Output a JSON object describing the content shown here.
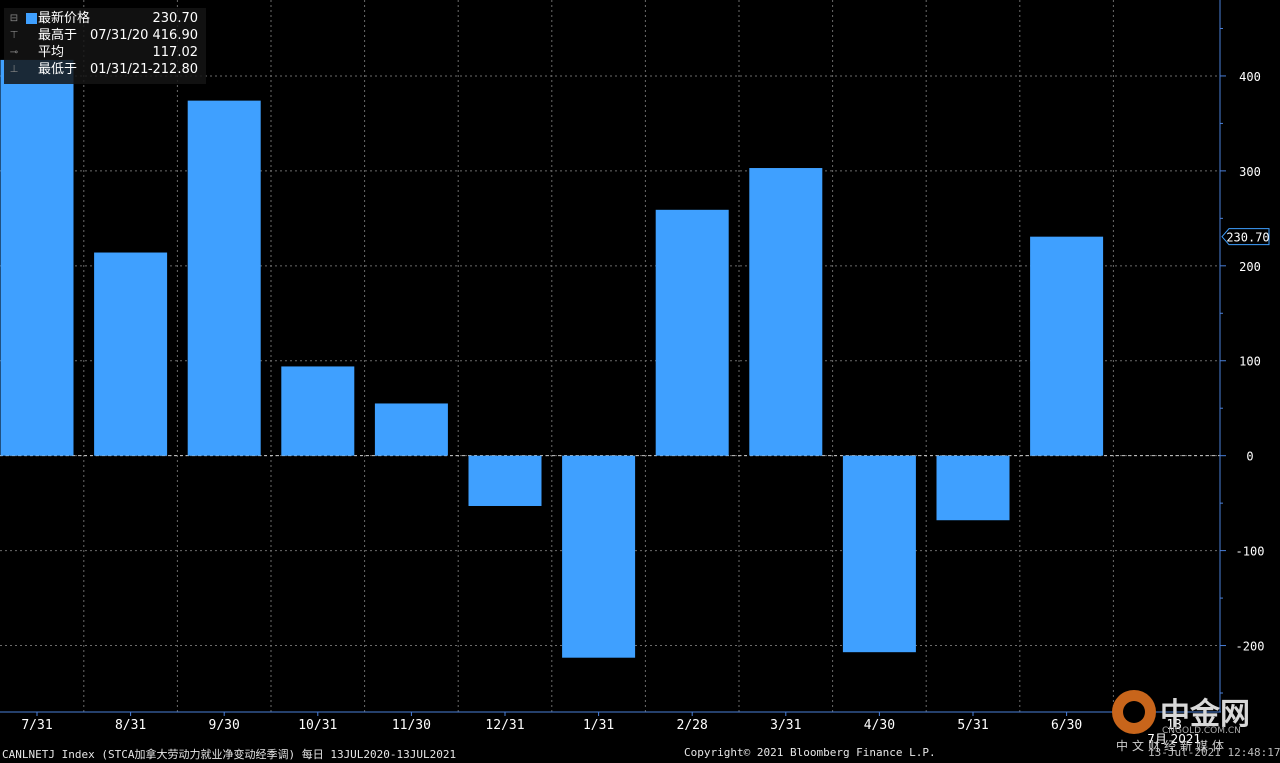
{
  "chart_data": {
    "type": "bar",
    "categories": [
      "7/31",
      "8/31",
      "9/30",
      "10/31",
      "11/30",
      "12/31",
      "1/31",
      "2/28",
      "3/31",
      "4/30",
      "5/31",
      "6/30"
    ],
    "values": [
      416.9,
      214,
      374,
      94,
      55,
      -53,
      -212.8,
      259,
      303,
      -207,
      -68,
      230.7
    ],
    "ylim": [
      -270,
      480
    ],
    "yticks": [
      400,
      300,
      200,
      100,
      0,
      -100,
      -200
    ],
    "ytick_labels": [
      "400",
      "300",
      "200",
      "100",
      "0",
      "-100",
      "-200"
    ],
    "grid": true,
    "bar_color": "#3fa0ff",
    "last_value_label": "230.70",
    "x_extra_label_top": "13",
    "x_extra_label_bottom": "7月 2021"
  },
  "legend": {
    "rows": [
      {
        "indicator": "⊟",
        "label": "最新价格",
        "date": "",
        "value": "230.70",
        "swatch": true
      },
      {
        "indicator": "⊤",
        "label": "最高于",
        "date": "07/31/20",
        "value": "416.90",
        "swatch": false
      },
      {
        "indicator": "⊸",
        "label": "平均",
        "date": "",
        "value": "117.02",
        "swatch": false
      },
      {
        "indicator": "⊥",
        "label": "最低于",
        "date": "01/31/21",
        "value": "-212.80",
        "swatch": false
      }
    ]
  },
  "footer": {
    "index": "CANLNETJ Index (STCA加拿大劳动力就业净变动经季调) 每日 13JUL2020-13JUL2021",
    "copyright": "Copyright© 2021 Bloomberg Finance L.P.",
    "timestamp": "13-Jul-2021 12:48:17"
  },
  "watermark": {
    "title": "中金网",
    "url": "CNGOLD.COM.CN",
    "subtitle": "中文财经新媒体"
  },
  "colors": {
    "background": "#000000",
    "bar": "#3fa0ff",
    "grid": "#6b6b6b",
    "axis": "#4a7fd8"
  }
}
